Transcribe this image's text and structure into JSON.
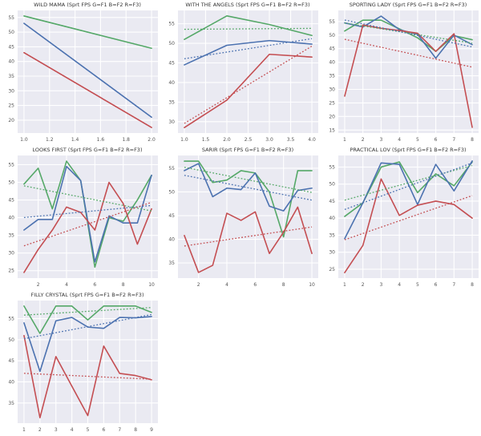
{
  "palette": {
    "page_bg": "#ffffff",
    "plot_bg": "#eaeaf2",
    "grid": "#ffffff",
    "green": "#55a868",
    "blue": "#4c72b0",
    "red": "#c44e52",
    "title_text": "#333333",
    "tick_text": "#555555"
  },
  "legend_key": {
    "green": "G=F1",
    "blue": "B=F2",
    "red": "R=F3"
  },
  "chart_data": [
    {
      "type": "line",
      "title": "WILD MAMA (Sprt FPS G=F1 B=F2 R=F3)",
      "xlabel": "",
      "ylabel": "",
      "grid": true,
      "x": [
        1,
        2
      ],
      "xlim": [
        0.95,
        2.05
      ],
      "ylim": [
        15.6,
        57.4
      ],
      "x_tick_values": [
        1.0,
        1.2,
        1.4,
        1.6,
        1.8,
        2.0
      ],
      "x_tick_labels": [
        "1.0",
        "1.2",
        "1.4",
        "1.6",
        "1.8",
        "2.0"
      ],
      "y_ticks": [
        20,
        25,
        30,
        35,
        40,
        45,
        50,
        55
      ],
      "trend_lines": true,
      "series": [
        {
          "name": "F1",
          "color_key": "green",
          "style": "solid",
          "values": [
            55.5,
            44.5
          ]
        },
        {
          "name": "F2",
          "color_key": "blue",
          "style": "solid",
          "values": [
            53,
            21
          ]
        },
        {
          "name": "F3",
          "color_key": "red",
          "style": "solid",
          "values": [
            43,
            17.5
          ]
        }
      ]
    },
    {
      "type": "line",
      "title": "WITH THE ANGELS (Sprt FPS G=F1 B=F2 R=F3)",
      "xlabel": "",
      "ylabel": "",
      "grid": true,
      "x": [
        1,
        2,
        3,
        4
      ],
      "xlim": [
        0.85,
        4.15
      ],
      "ylim": [
        27.1,
        58.4
      ],
      "x_tick_values": [
        1.0,
        1.5,
        2.0,
        2.5,
        3.0,
        3.5,
        4.0
      ],
      "x_tick_labels": [
        "1.0",
        "1.5",
        "2.0",
        "2.5",
        "3.0",
        "3.5",
        "4.0"
      ],
      "y_ticks": [
        30,
        35,
        40,
        45,
        50,
        55
      ],
      "trend_lines": true,
      "series": [
        {
          "name": "F1",
          "color_key": "green",
          "style": "solid",
          "values": [
            51,
            57,
            54.8,
            52
          ]
        },
        {
          "name": "F2",
          "color_key": "blue",
          "style": "solid",
          "values": [
            44.5,
            49.5,
            50.7,
            49.8
          ]
        },
        {
          "name": "F3",
          "color_key": "red",
          "style": "solid",
          "values": [
            28.5,
            35.5,
            47.2,
            46.5
          ]
        }
      ]
    },
    {
      "type": "line",
      "title": "SPORTING LADY (Sprt FPS G=F1 B=F2 R=F3)",
      "xlabel": "",
      "ylabel": "",
      "grid": true,
      "x": [
        1,
        2,
        3,
        4,
        5,
        6,
        7,
        8
      ],
      "xlim": [
        0.65,
        8.35
      ],
      "ylim": [
        13.9,
        59.1
      ],
      "x_tick_values": [
        1,
        2,
        3,
        4,
        5,
        6,
        7,
        8
      ],
      "x_tick_labels": [
        "1",
        "2",
        "3",
        "4",
        "5",
        "6",
        "7",
        "8"
      ],
      "y_ticks": [
        15,
        20,
        25,
        30,
        35,
        40,
        45,
        50,
        55
      ],
      "trend_lines": true,
      "series": [
        {
          "name": "F1",
          "color_key": "green",
          "style": "solid",
          "values": [
            51.5,
            55.5,
            55.5,
            52.3,
            49,
            44,
            49.8,
            48.3
          ]
        },
        {
          "name": "F2",
          "color_key": "blue",
          "style": "solid",
          "values": [
            54.5,
            53,
            57,
            52,
            50.3,
            41.5,
            50,
            46.5
          ]
        },
        {
          "name": "F3",
          "color_key": "red",
          "style": "solid",
          "values": [
            27.5,
            53.7,
            52.5,
            51.7,
            50.7,
            44,
            50.5,
            16
          ]
        }
      ]
    },
    {
      "type": "line",
      "title": "LOOKS FIRST (Sprt FPS G=F1 B=F2 R=F3)",
      "xlabel": "",
      "ylabel": "",
      "grid": true,
      "x": [
        1,
        2,
        3,
        4,
        5,
        6,
        7,
        8,
        9,
        10
      ],
      "xlim": [
        0.55,
        10.45
      ],
      "ylim": [
        22.9,
        57.6
      ],
      "x_tick_values": [
        2,
        4,
        6,
        8,
        10
      ],
      "x_tick_labels": [
        "2",
        "4",
        "6",
        "8",
        "10"
      ],
      "y_ticks": [
        25,
        30,
        35,
        40,
        45,
        50,
        55
      ],
      "trend_lines": true,
      "series": [
        {
          "name": "F1",
          "color_key": "green",
          "style": "solid",
          "values": [
            49.5,
            54,
            42.5,
            56,
            50.5,
            26,
            40,
            39,
            45,
            52
          ]
        },
        {
          "name": "F2",
          "color_key": "blue",
          "style": "solid",
          "values": [
            36.5,
            39.5,
            39.5,
            54.5,
            50.5,
            27.5,
            40.5,
            38.5,
            38.5,
            52
          ]
        },
        {
          "name": "F3",
          "color_key": "red",
          "style": "solid",
          "values": [
            24.5,
            31,
            36.5,
            43,
            41.5,
            36.5,
            50,
            44,
            32.5,
            42.5
          ]
        }
      ]
    },
    {
      "type": "line",
      "title": "SARIR (Sprt FPS G=F1 B=F2 R=F3)",
      "xlabel": "",
      "ylabel": "",
      "grid": true,
      "x": [
        1,
        2,
        3,
        4,
        5,
        6,
        7,
        8,
        9,
        10
      ],
      "xlim": [
        0.55,
        10.45
      ],
      "ylim": [
        31.8,
        57.7
      ],
      "x_tick_values": [
        2,
        4,
        6,
        8,
        10
      ],
      "x_tick_labels": [
        "2",
        "4",
        "6",
        "8",
        "10"
      ],
      "y_ticks": [
        35,
        40,
        45,
        50,
        55
      ],
      "trend_lines": true,
      "series": [
        {
          "name": "F1",
          "color_key": "green",
          "style": "solid",
          "values": [
            56.5,
            56.5,
            52,
            52.5,
            54.5,
            54,
            50,
            40.5,
            54.5,
            54.5
          ]
        },
        {
          "name": "F2",
          "color_key": "blue",
          "style": "solid",
          "values": [
            54.5,
            56,
            49,
            50.8,
            50.5,
            54,
            47,
            46,
            50.3,
            50.8
          ]
        },
        {
          "name": "F3",
          "color_key": "red",
          "style": "solid",
          "values": [
            40.8,
            33,
            34.5,
            45.5,
            44,
            45.8,
            37,
            41.5,
            46.8,
            37
          ]
        }
      ]
    },
    {
      "type": "line",
      "title": "PRACTICAL LOV (Sprt FPS G=F1 B=F2 R=F3)",
      "xlabel": "",
      "ylabel": "",
      "grid": true,
      "x": [
        1,
        2,
        3,
        4,
        5,
        6,
        7,
        8
      ],
      "xlim": [
        0.65,
        8.35
      ],
      "ylim": [
        22.4,
        58.4
      ],
      "x_tick_values": [
        1,
        2,
        3,
        4,
        5,
        6,
        7,
        8
      ],
      "x_tick_labels": [
        "1",
        "2",
        "3",
        "4",
        "5",
        "6",
        "7",
        "8"
      ],
      "y_ticks": [
        25,
        30,
        35,
        40,
        45,
        50,
        55
      ],
      "trend_lines": true,
      "series": [
        {
          "name": "F1",
          "color_key": "green",
          "style": "solid",
          "values": [
            40.5,
            44.5,
            55,
            56.5,
            47.5,
            53,
            49.5,
            56.5
          ]
        },
        {
          "name": "F2",
          "color_key": "blue",
          "style": "solid",
          "values": [
            34,
            44.5,
            56.2,
            55.8,
            44,
            55.8,
            48,
            56.8
          ]
        },
        {
          "name": "F3",
          "color_key": "red",
          "style": "solid",
          "values": [
            24,
            32,
            51.5,
            40.8,
            43.8,
            45,
            44,
            40
          ]
        }
      ]
    },
    {
      "type": "line",
      "title": "FILLY CRYSTAL (Sprt FPS G=F1 B=F2 R=F3)",
      "xlabel": "",
      "ylabel": "",
      "grid": true,
      "x": [
        1,
        2,
        3,
        4,
        5,
        6,
        7,
        8,
        9
      ],
      "xlim": [
        0.6,
        9.4
      ],
      "ylim": [
        30.2,
        59.3
      ],
      "x_tick_values": [
        1,
        2,
        3,
        4,
        5,
        6,
        7,
        8,
        9
      ],
      "x_tick_labels": [
        "1",
        "2",
        "3",
        "4",
        "5",
        "6",
        "7",
        "8",
        "9"
      ],
      "y_ticks": [
        35,
        40,
        45,
        50,
        55
      ],
      "trend_lines": true,
      "series": [
        {
          "name": "F1",
          "color_key": "green",
          "style": "solid",
          "values": [
            58,
            51.5,
            58,
            58,
            54.7,
            58,
            58,
            58,
            56.5
          ]
        },
        {
          "name": "F2",
          "color_key": "blue",
          "style": "solid",
          "values": [
            54,
            42.5,
            54.5,
            55.3,
            53,
            52.7,
            55.3,
            55.2,
            55.5
          ]
        },
        {
          "name": "F3",
          "color_key": "red",
          "style": "solid",
          "values": [
            51,
            31.5,
            46,
            39,
            32,
            48.5,
            42,
            41.5,
            40.5
          ]
        }
      ]
    }
  ]
}
